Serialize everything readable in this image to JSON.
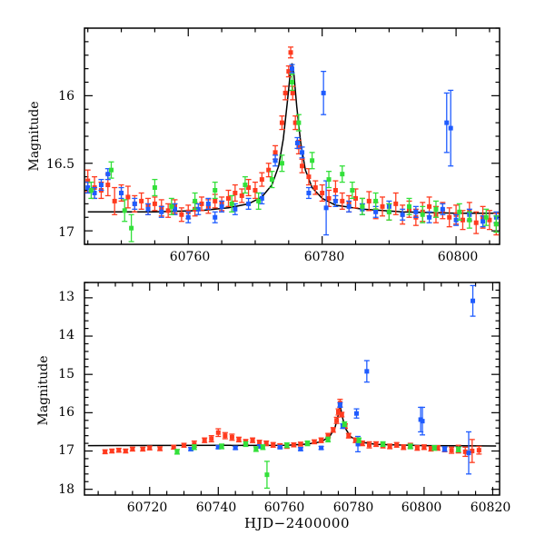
{
  "chart_data": [
    {
      "type": "scatter",
      "panel": "top",
      "title": "",
      "xlabel": "",
      "ylabel": "Magnitude",
      "xlim": [
        60744.5,
        60806.5
      ],
      "ylim": [
        17.1,
        15.5
      ],
      "y_inverted": true,
      "xticks": [
        60760,
        60780,
        60800
      ],
      "yticks": [
        16,
        16.5,
        17
      ],
      "xtick_labels": [
        "60760",
        "60780",
        "60800"
      ],
      "ytick_labels": [
        "16",
        "16.5",
        "17"
      ],
      "grid": false,
      "legend": "none",
      "model": {
        "name": "",
        "color": "#000000",
        "x": [
          60745,
          60755,
          60762,
          60766,
          60769,
          60771,
          60772.5,
          60773.5,
          60774.2,
          60774.8,
          60775.2,
          60775.5,
          60775.8,
          60776.2,
          60776.8,
          60777.5,
          60778.5,
          60780,
          60782,
          60786,
          60792,
          60800,
          60806.5
        ],
        "y": [
          16.86,
          16.86,
          16.85,
          16.83,
          16.8,
          16.75,
          16.66,
          16.52,
          16.32,
          16.05,
          15.85,
          15.76,
          15.85,
          16.08,
          16.35,
          16.55,
          16.68,
          16.76,
          16.81,
          16.84,
          16.86,
          16.87,
          16.87
        ]
      },
      "series": [
        {
          "color": "#ff3b1f",
          "x": [
            60745,
            60746,
            60747,
            60748,
            60749,
            60750,
            60751,
            60752,
            60753,
            60754,
            60755,
            60756,
            60757,
            60758,
            60759,
            60760,
            60761,
            60762,
            60763,
            60764,
            60765,
            60766,
            60767,
            60768,
            60769,
            60770,
            60771,
            60772,
            60773,
            60774,
            60774.5,
            60775,
            60775.3,
            60775.6,
            60776,
            60776.5,
            60777,
            60778,
            60779,
            60780,
            60781,
            60782,
            60783,
            60784,
            60785,
            60786,
            60787,
            60788,
            60789,
            60790,
            60791,
            60792,
            60793,
            60794,
            60795,
            60796,
            60797,
            60798,
            60799,
            60800,
            60801,
            60802,
            60803,
            60804,
            60805,
            60806
          ],
          "y": [
            16.63,
            16.68,
            16.7,
            16.66,
            16.78,
            16.72,
            16.75,
            16.8,
            16.78,
            16.82,
            16.8,
            16.83,
            16.85,
            16.82,
            16.88,
            16.86,
            16.84,
            16.8,
            16.82,
            16.78,
            16.8,
            16.76,
            16.72,
            16.74,
            16.68,
            16.7,
            16.62,
            16.55,
            16.42,
            16.2,
            15.98,
            15.82,
            15.68,
            15.98,
            16.2,
            16.38,
            16.52,
            16.6,
            16.68,
            16.72,
            16.76,
            16.7,
            16.78,
            16.8,
            16.76,
            16.82,
            16.78,
            16.85,
            16.82,
            16.86,
            16.8,
            16.88,
            16.84,
            16.9,
            16.86,
            16.82,
            16.88,
            16.85,
            16.9,
            16.88,
            16.92,
            16.86,
            16.94,
            16.9,
            16.92,
            16.95
          ],
          "err": [
            0.08,
            0.08,
            0.06,
            0.08,
            0.1,
            0.06,
            0.08,
            0.06,
            0.06,
            0.06,
            0.05,
            0.06,
            0.05,
            0.05,
            0.05,
            0.05,
            0.05,
            0.05,
            0.05,
            0.05,
            0.05,
            0.06,
            0.06,
            0.05,
            0.06,
            0.06,
            0.05,
            0.05,
            0.05,
            0.05,
            0.05,
            0.04,
            0.04,
            0.05,
            0.05,
            0.05,
            0.05,
            0.06,
            0.05,
            0.06,
            0.06,
            0.07,
            0.06,
            0.06,
            0.07,
            0.06,
            0.07,
            0.06,
            0.07,
            0.06,
            0.08,
            0.07,
            0.06,
            0.06,
            0.07,
            0.07,
            0.06,
            0.06,
            0.07,
            0.07,
            0.07,
            0.07,
            0.08,
            0.08,
            0.07,
            0.08
          ]
        },
        {
          "color": "#1f5cff",
          "x": [
            60745,
            60746,
            60747,
            60748,
            60750,
            60752,
            60754,
            60756,
            60758,
            60760,
            60761.5,
            60763,
            60764,
            60765,
            60767,
            60769,
            60771,
            60773,
            60775.5,
            60776.3,
            60777,
            60778,
            60780.2,
            60780.6,
            60782,
            60784,
            60786,
            60788,
            60790,
            60792,
            60794,
            60796,
            60798,
            60798.6,
            60799.2,
            60800,
            60802,
            60804,
            60806
          ],
          "y": [
            16.68,
            16.72,
            16.66,
            16.58,
            16.72,
            16.8,
            16.84,
            16.86,
            16.84,
            16.9,
            16.84,
            16.8,
            16.9,
            16.82,
            16.84,
            16.8,
            16.76,
            16.48,
            15.8,
            16.35,
            16.42,
            16.72,
            15.98,
            16.83,
            16.78,
            16.82,
            16.84,
            16.86,
            16.82,
            16.88,
            16.86,
            16.9,
            16.84,
            16.2,
            16.24,
            16.92,
            16.88,
            16.93,
            16.9
          ],
          "err": [
            0.04,
            0.04,
            0.04,
            0.04,
            0.04,
            0.04,
            0.04,
            0.04,
            0.04,
            0.04,
            0.04,
            0.04,
            0.04,
            0.04,
            0.04,
            0.04,
            0.04,
            0.04,
            0.03,
            0.04,
            0.04,
            0.04,
            0.16,
            0.2,
            0.04,
            0.04,
            0.04,
            0.04,
            0.04,
            0.04,
            0.04,
            0.04,
            0.04,
            0.22,
            0.28,
            0.04,
            0.04,
            0.04,
            0.04
          ]
        },
        {
          "color": "#33e03a",
          "x": [
            60745.5,
            60748.5,
            60750.5,
            60751.5,
            60755,
            60757.5,
            60761,
            60764,
            60766.5,
            60768.5,
            60770.5,
            60772.5,
            60774,
            60775.5,
            60776.5,
            60778.5,
            60781,
            60783,
            60784.5,
            60786,
            60788,
            60790,
            60793,
            60795,
            60797,
            60800.5,
            60802,
            60804.5,
            60806
          ],
          "y": [
            16.7,
            16.55,
            16.85,
            16.98,
            16.68,
            16.82,
            16.78,
            16.7,
            16.8,
            16.66,
            16.78,
            16.62,
            16.5,
            15.9,
            16.2,
            16.48,
            16.62,
            16.58,
            16.7,
            16.82,
            16.78,
            16.86,
            16.82,
            16.88,
            16.84,
            16.86,
            16.92,
            16.9,
            16.95
          ],
          "err": [
            0.06,
            0.06,
            0.08,
            0.1,
            0.06,
            0.06,
            0.06,
            0.06,
            0.06,
            0.06,
            0.06,
            0.06,
            0.06,
            0.06,
            0.06,
            0.06,
            0.06,
            0.06,
            0.06,
            0.06,
            0.06,
            0.06,
            0.06,
            0.06,
            0.06,
            0.06,
            0.06,
            0.06,
            0.06
          ]
        }
      ]
    },
    {
      "type": "scatter",
      "panel": "bottom",
      "title": "",
      "xlabel": "HJD−2400000",
      "ylabel": "Magnitude",
      "xlim": [
        60701,
        60822
      ],
      "ylim": [
        18.15,
        12.6
      ],
      "y_inverted": true,
      "xticks": [
        60720,
        60740,
        60760,
        60780,
        60800,
        60820
      ],
      "yticks": [
        13,
        14,
        15,
        16,
        17,
        18
      ],
      "xtick_labels": [
        "60720",
        "60740",
        "60760",
        "60780",
        "60800",
        "60820"
      ],
      "ytick_labels": [
        "13",
        "14",
        "15",
        "16",
        "17",
        "18"
      ],
      "grid": false,
      "legend": "none",
      "model": {
        "name": "",
        "color": "#000000",
        "x": [
          60702,
          60760,
          60766,
          60770,
          60772.5,
          60774,
          60775,
          60775.5,
          60776,
          60777,
          60778.5,
          60781,
          60786,
          60800,
          60821
        ],
        "y": [
          16.86,
          16.85,
          16.82,
          16.76,
          16.62,
          16.4,
          16.05,
          15.78,
          16.05,
          16.4,
          16.62,
          16.76,
          16.83,
          16.86,
          16.87
        ]
      },
      "series": [
        {
          "color": "#ff3b1f",
          "x": [
            60707,
            60709,
            60711,
            60713,
            60715,
            60718,
            60720,
            60723,
            60727,
            60730,
            60733,
            60736,
            60738,
            60740,
            60742,
            60744,
            60746,
            60748,
            60750,
            60752,
            60754,
            60756,
            60758,
            60760,
            60762,
            60764,
            60766,
            60768,
            60770,
            60772,
            60773.5,
            60774.5,
            60775,
            60775.5,
            60776,
            60777,
            60778,
            60780,
            60782,
            60784,
            60786,
            60788,
            60790,
            60792,
            60794,
            60796,
            60798,
            60800,
            60802,
            60804,
            60806,
            60808,
            60810,
            60812,
            60814,
            60816
          ],
          "y": [
            17.02,
            17.0,
            16.98,
            17.0,
            16.95,
            16.95,
            16.92,
            16.94,
            16.9,
            16.85,
            16.82,
            16.72,
            16.68,
            16.52,
            16.6,
            16.64,
            16.7,
            16.76,
            16.72,
            16.78,
            16.8,
            16.84,
            16.86,
            16.88,
            16.84,
            16.82,
            16.8,
            16.76,
            16.72,
            16.6,
            16.45,
            16.2,
            15.98,
            15.75,
            16.05,
            16.35,
            16.6,
            16.72,
            16.8,
            16.84,
            16.82,
            16.86,
            16.88,
            16.84,
            16.9,
            16.86,
            16.92,
            16.9,
            16.94,
            16.92,
            16.96,
            16.98,
            16.95,
            17.02,
            17.0,
            16.98
          ],
          "err": [
            0.05,
            0.05,
            0.05,
            0.05,
            0.05,
            0.05,
            0.05,
            0.05,
            0.05,
            0.05,
            0.08,
            0.06,
            0.08,
            0.1,
            0.08,
            0.08,
            0.06,
            0.06,
            0.06,
            0.06,
            0.06,
            0.06,
            0.05,
            0.05,
            0.05,
            0.05,
            0.05,
            0.05,
            0.06,
            0.06,
            0.06,
            0.08,
            0.08,
            0.1,
            0.06,
            0.06,
            0.06,
            0.06,
            0.06,
            0.08,
            0.06,
            0.06,
            0.06,
            0.06,
            0.06,
            0.06,
            0.06,
            0.06,
            0.06,
            0.06,
            0.06,
            0.08,
            0.1,
            0.12,
            0.3,
            0.1
          ]
        },
        {
          "color": "#1f5cff",
          "x": [
            60732,
            60740,
            60745,
            60752,
            60758,
            60764,
            60770,
            60775.5,
            60776.3,
            60780.3,
            60780.7,
            60783.3,
            60799,
            60799.5,
            60806,
            60813,
            60814.2
          ],
          "y": [
            16.95,
            16.9,
            16.92,
            16.88,
            16.9,
            16.95,
            16.92,
            15.8,
            16.35,
            16.02,
            16.82,
            14.92,
            16.18,
            16.22,
            16.95,
            17.05,
            13.08
          ],
          "err": [
            0.04,
            0.04,
            0.04,
            0.04,
            0.04,
            0.04,
            0.04,
            0.06,
            0.06,
            0.12,
            0.2,
            0.28,
            0.32,
            0.36,
            0.06,
            0.55,
            0.4
          ]
        },
        {
          "color": "#33e03a",
          "x": [
            60728,
            60733,
            60741,
            60748,
            60751,
            60753,
            60754.2,
            60760,
            60766,
            60772,
            60776.8,
            60781,
            60788,
            60796,
            60803,
            60810
          ],
          "y": [
            17.02,
            16.9,
            16.88,
            16.82,
            16.95,
            16.9,
            17.62,
            16.85,
            16.8,
            16.7,
            16.3,
            16.72,
            16.82,
            16.88,
            16.92,
            16.96
          ],
          "err": [
            0.06,
            0.06,
            0.06,
            0.06,
            0.06,
            0.06,
            0.35,
            0.06,
            0.06,
            0.06,
            0.06,
            0.06,
            0.06,
            0.06,
            0.06,
            0.06
          ]
        }
      ]
    }
  ]
}
